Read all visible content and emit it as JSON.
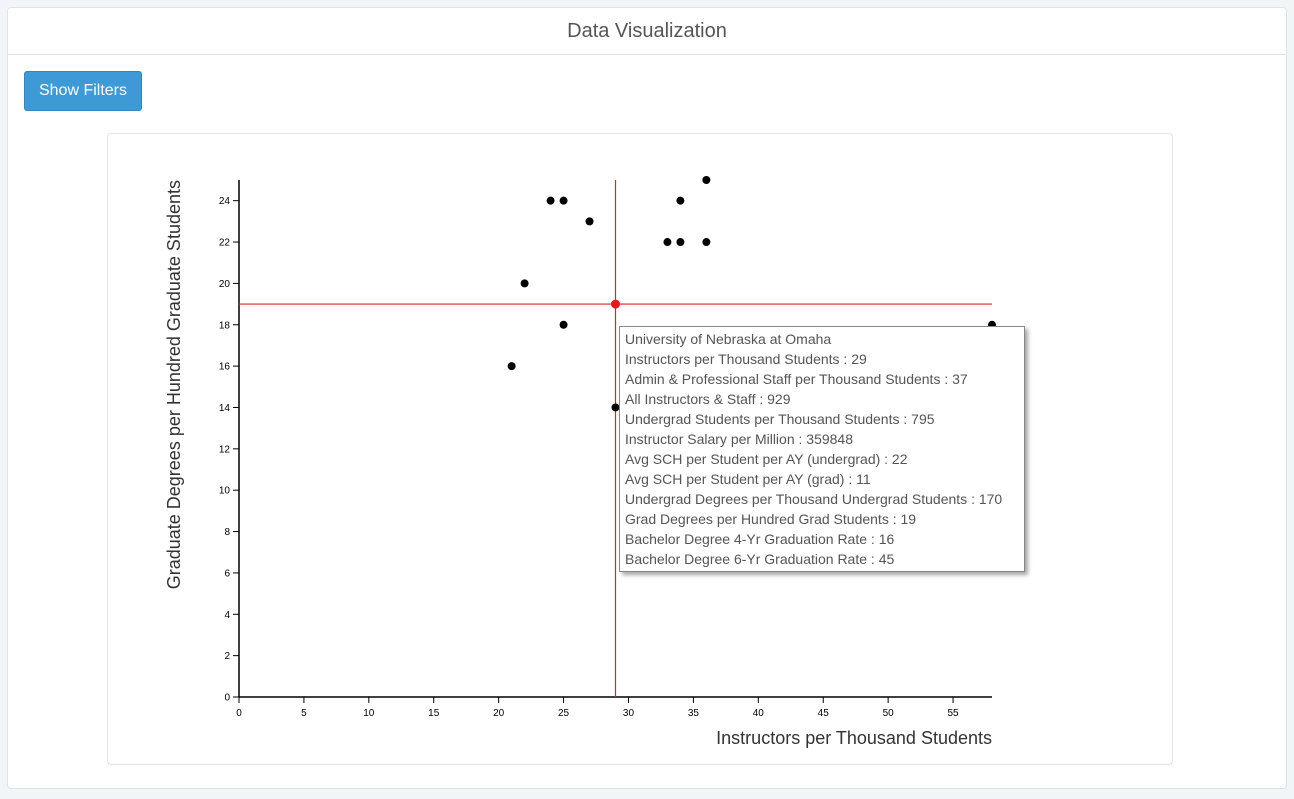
{
  "header": {
    "title": "Data Visualization"
  },
  "toolbar": {
    "show_filters_label": "Show Filters"
  },
  "colors": {
    "accent": "#3d9ad6",
    "crosshair": "#d62728",
    "point": "#000000",
    "highlight": "#e31a1c"
  },
  "chart_data": {
    "type": "scatter",
    "xlabel": "Instructors per Thousand Students",
    "ylabel": "Graduate Degrees per Hundred Graduate Students",
    "xlim": [
      0,
      58
    ],
    "ylim": [
      0,
      25
    ],
    "xticks": [
      0,
      5,
      10,
      15,
      20,
      25,
      30,
      35,
      40,
      45,
      50,
      55
    ],
    "yticks": [
      0,
      2,
      4,
      6,
      8,
      10,
      12,
      14,
      16,
      18,
      20,
      22,
      24
    ],
    "points": [
      {
        "x": 21,
        "y": 16
      },
      {
        "x": 22,
        "y": 20
      },
      {
        "x": 24,
        "y": 24
      },
      {
        "x": 25,
        "y": 24
      },
      {
        "x": 25,
        "y": 18
      },
      {
        "x": 27,
        "y": 23
      },
      {
        "x": 29,
        "y": 14
      },
      {
        "x": 33,
        "y": 22
      },
      {
        "x": 34,
        "y": 22
      },
      {
        "x": 34,
        "y": 24
      },
      {
        "x": 36,
        "y": 25
      },
      {
        "x": 36,
        "y": 22
      },
      {
        "x": 58,
        "y": 18
      }
    ],
    "highlight": {
      "x": 29,
      "y": 19
    }
  },
  "tooltip": {
    "lines": [
      "University of Nebraska at Omaha",
      "Instructors per Thousand Students : 29",
      "Admin & Professional Staff per Thousand Students : 37",
      "All Instructors & Staff : 929",
      "Undergrad Students per Thousand Students : 795",
      "Instructor Salary per Million : 359848",
      "Avg SCH per Student per AY (undergrad) : 22",
      "Avg SCH per Student per AY (grad) : 11",
      "Undergrad Degrees per Thousand Undergrad Students : 170",
      "Grad Degrees per Hundred Grad Students : 19",
      "Bachelor Degree 4-Yr Graduation Rate : 16",
      "Bachelor Degree 6-Yr Graduation Rate : 45"
    ]
  }
}
